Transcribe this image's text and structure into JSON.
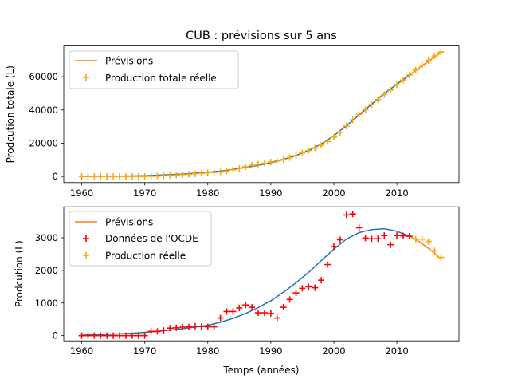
{
  "title": "CUB : prévisions sur 5 ans",
  "colors": {
    "model": "#1f77b4",
    "forecast": "#ff7f0e",
    "oecd": "#ff0000",
    "real": "#ffa500"
  },
  "chart_data": [
    {
      "type": "line",
      "xlabel": "",
      "ylabel": "Prodcution totale (L)",
      "xlim": [
        1957.15,
        2019.85
      ],
      "ylim": [
        -3700,
        78500
      ],
      "xticks": [
        1960,
        1970,
        1980,
        1990,
        2000,
        2010
      ],
      "yticks": [
        0,
        20000,
        40000,
        60000
      ],
      "legend": {
        "position": "top-left",
        "entries": [
          "Prévisions",
          "Production totale réelle"
        ]
      },
      "model_line": {
        "x": [
          1960,
          1962,
          1964,
          1966,
          1968,
          1970,
          1972,
          1974,
          1976,
          1978,
          1980,
          1982,
          1984,
          1986,
          1988,
          1990,
          1992,
          1994,
          1996,
          1998,
          2000,
          2002,
          2004,
          2006,
          2008,
          2010,
          2012
        ],
        "y": [
          0,
          30,
          100,
          180,
          280,
          420,
          700,
          1050,
          1450,
          1950,
          2500,
          3200,
          4200,
          5400,
          6700,
          8200,
          10200,
          12600,
          15600,
          19500,
          24500,
          30500,
          37000,
          43500,
          49800,
          55500,
          61000
        ]
      },
      "forecast_line": {
        "x": [
          2012,
          2013,
          2014,
          2015,
          2016,
          2017
        ],
        "y": [
          61000,
          63800,
          66600,
          69300,
          72000,
          74500
        ]
      },
      "series": [
        {
          "name": "Production totale réelle",
          "marker": "plus",
          "x": [
            1960,
            1961,
            1962,
            1963,
            1964,
            1965,
            1966,
            1967,
            1968,
            1969,
            1970,
            1971,
            1972,
            1973,
            1974,
            1975,
            1976,
            1977,
            1978,
            1979,
            1980,
            1981,
            1982,
            1983,
            1984,
            1985,
            1986,
            1987,
            1988,
            1989,
            1990,
            1991,
            1992,
            1993,
            1994,
            1995,
            1996,
            1997,
            1998,
            1999,
            2000,
            2001,
            2002,
            2003,
            2004,
            2005,
            2006,
            2007,
            2008,
            2009,
            2010,
            2011,
            2012
          ],
          "y": [
            0,
            0,
            0,
            0,
            0,
            0,
            0,
            0,
            0,
            0,
            0,
            100,
            200,
            400,
            600,
            800,
            1100,
            1300,
            1600,
            1900,
            2200,
            2400,
            2700,
            3300,
            4000,
            4900,
            5800,
            6700,
            7400,
            8000,
            8700,
            9300,
            10200,
            11300,
            12500,
            14100,
            15600,
            17100,
            18800,
            21000,
            23700,
            26500,
            30300,
            34000,
            37300,
            40200,
            43200,
            46300,
            49300,
            52000,
            55100,
            58000,
            61000
          ]
        },
        {
          "name": "",
          "marker": "plus",
          "x": [
            2013,
            2014,
            2015,
            2016,
            2017
          ],
          "y": [
            64000,
            66900,
            69800,
            72500,
            74900
          ]
        }
      ]
    },
    {
      "type": "line",
      "xlabel": "Temps (années)",
      "ylabel": "Prodcution (L)",
      "xlim": [
        1957.15,
        2019.85
      ],
      "ylim": [
        -160,
        3950
      ],
      "xticks": [
        1960,
        1970,
        1980,
        1990,
        2000,
        2010
      ],
      "yticks": [
        0,
        1000,
        2000,
        3000
      ],
      "legend": {
        "position": "top-left",
        "entries": [
          "Prévisions",
          "Données de l'OCDE",
          "Production réelle"
        ]
      },
      "model_line": {
        "x": [
          1960,
          1962,
          1964,
          1966,
          1968,
          1970,
          1972,
          1974,
          1976,
          1978,
          1980,
          1982,
          1984,
          1986,
          1988,
          1990,
          1992,
          1994,
          1996,
          1998,
          2000,
          2002,
          2004,
          2006,
          2008,
          2010,
          2012
        ],
        "y": [
          15,
          25,
          40,
          55,
          75,
          100,
          130,
          170,
          215,
          260,
          320,
          410,
          530,
          680,
          860,
          1070,
          1330,
          1620,
          1940,
          2300,
          2650,
          2960,
          3160,
          3250,
          3280,
          3200,
          3050
        ]
      },
      "forecast_line": {
        "x": [
          2012,
          2013,
          2014,
          2015,
          2016,
          2017
        ],
        "y": [
          3050,
          2950,
          2820,
          2680,
          2520,
          2350
        ]
      },
      "series": [
        {
          "name": "Données de l'OCDE",
          "marker": "plus",
          "x": [
            1960,
            1961,
            1962,
            1963,
            1964,
            1965,
            1966,
            1967,
            1968,
            1969,
            1970,
            1971,
            1972,
            1973,
            1974,
            1975,
            1976,
            1977,
            1978,
            1979,
            1980,
            1981,
            1982,
            1983,
            1984,
            1985,
            1986,
            1987,
            1988,
            1989,
            1990,
            1991,
            1992,
            1993,
            1994,
            1995,
            1996,
            1997,
            1998,
            1999,
            2000,
            2001,
            2002,
            2003,
            2004,
            2005,
            2006,
            2007,
            2008,
            2009,
            2010,
            2011,
            2012
          ],
          "y": [
            0,
            0,
            0,
            0,
            0,
            0,
            0,
            0,
            0,
            0,
            0,
            130,
            130,
            160,
            230,
            240,
            260,
            270,
            290,
            280,
            270,
            270,
            540,
            740,
            740,
            850,
            940,
            870,
            700,
            700,
            680,
            540,
            870,
            1110,
            1310,
            1450,
            1500,
            1470,
            1700,
            2180,
            2730,
            2940,
            3700,
            3730,
            3310,
            2990,
            2970,
            2970,
            3070,
            2790,
            3070,
            3060,
            3050
          ]
        },
        {
          "name": "Production réelle",
          "marker": "plus",
          "x": [
            2013,
            2014,
            2015,
            2016,
            2017
          ],
          "y": [
            2960,
            2960,
            2890,
            2600,
            2400
          ]
        }
      ]
    }
  ]
}
